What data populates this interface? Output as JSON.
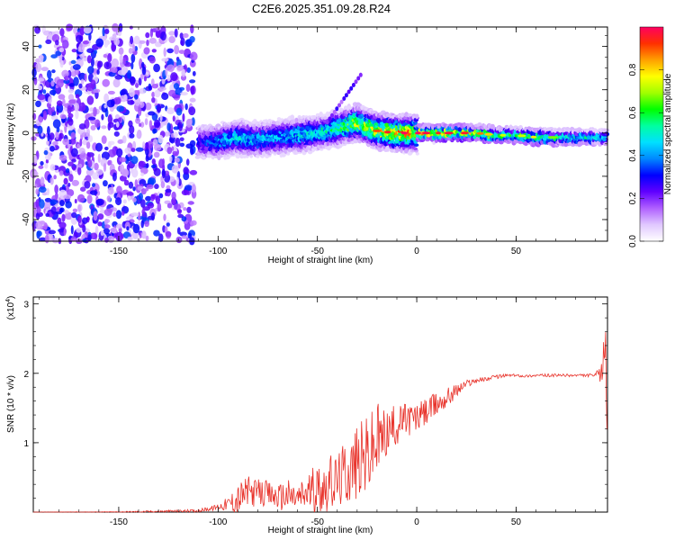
{
  "page_title": "C2E6.2025.351.09.28.R24",
  "chart_data": [
    {
      "type": "heatmap",
      "title": "C2E6.2025.351.09.28.R24",
      "xlabel": "Height of straight line (km)",
      "ylabel": "Frequency (Hz)",
      "xlim": [
        -193,
        96
      ],
      "ylim": [
        -50,
        49
      ],
      "x_ticks": [
        -150,
        -100,
        -50,
        0,
        50
      ],
      "x_tick_labels": [
        "-150",
        "-100",
        "-50",
        "0",
        "50"
      ],
      "y_ticks": [
        -40,
        -20,
        0,
        20,
        40
      ],
      "y_tick_labels": [
        "-40",
        "-20",
        "0",
        "20",
        "40"
      ],
      "colorbar": {
        "label": "Normalized spectral amplitude",
        "range": [
          0,
          1
        ],
        "ticks": [
          0.0,
          0.2,
          0.4,
          0.6,
          0.8
        ],
        "tick_labels": [
          "0.0",
          "0.2",
          "0.4",
          "0.6",
          "0.8"
        ],
        "colors": [
          "#ffffff",
          "#e0c8ff",
          "#b060ff",
          "#6000ff",
          "#0000ff",
          "#0088ff",
          "#00e0ff",
          "#00ffa0",
          "#00ff00",
          "#a0ff00",
          "#ffff00",
          "#ffa000",
          "#ff3000",
          "#ff0060"
        ]
      },
      "ridge": [
        {
          "x": -110,
          "y": -4,
          "v": 0.35
        },
        {
          "x": -100,
          "y": -4,
          "v": 0.45
        },
        {
          "x": -90,
          "y": -2,
          "v": 0.55
        },
        {
          "x": -80,
          "y": -3,
          "v": 0.5
        },
        {
          "x": -70,
          "y": -2,
          "v": 0.5
        },
        {
          "x": -60,
          "y": -1,
          "v": 0.55
        },
        {
          "x": -50,
          "y": 0,
          "v": 0.55
        },
        {
          "x": -40,
          "y": 2,
          "v": 0.65
        },
        {
          "x": -30,
          "y": 5,
          "v": 0.8
        },
        {
          "x": -20,
          "y": 1,
          "v": 0.85
        },
        {
          "x": -10,
          "y": 0,
          "v": 0.95
        },
        {
          "x": 0,
          "y": 0,
          "v": 0.95
        },
        {
          "x": 10,
          "y": 0,
          "v": 0.9
        },
        {
          "x": 20,
          "y": 0,
          "v": 0.95
        },
        {
          "x": 30,
          "y": 0,
          "v": 0.85
        },
        {
          "x": 40,
          "y": -1,
          "v": 0.7
        },
        {
          "x": 50,
          "y": -1,
          "v": 0.65
        },
        {
          "x": 60,
          "y": -2,
          "v": 0.75
        },
        {
          "x": 70,
          "y": -2,
          "v": 0.6
        },
        {
          "x": 80,
          "y": -2,
          "v": 0.6
        },
        {
          "x": 95,
          "y": -2,
          "v": 0.55
        }
      ],
      "noise_region": {
        "x": [
          -193,
          -112
        ],
        "y": [
          -50,
          49
        ],
        "v_max": 0.3
      }
    },
    {
      "type": "line",
      "xlabel": "Height of straight line (km)",
      "ylabel": "SNR (10 * v/v)",
      "y_multiplier_label": "(x10",
      "y_multiplier_exp": "4",
      "y_multiplier_close": ")",
      "xlim": [
        -193,
        96
      ],
      "ylim": [
        0,
        3.1
      ],
      "x_ticks": [
        -150,
        -100,
        -50,
        0,
        50
      ],
      "x_tick_labels": [
        "-150",
        "-100",
        "-50",
        "0",
        "50"
      ],
      "y_ticks": [
        1,
        2,
        3
      ],
      "y_tick_labels": [
        "1",
        "2",
        "3"
      ],
      "line_color": "#e8322a",
      "series": [
        {
          "name": "SNR",
          "x": [
            -193,
            -150,
            -110,
            -102,
            -95,
            -90,
            -85,
            -80,
            -75,
            -70,
            -65,
            -60,
            -55,
            -50,
            -45,
            -40,
            -35,
            -30,
            -25,
            -20,
            -15,
            -10,
            -5,
            0,
            5,
            10,
            15,
            20,
            25,
            30,
            35,
            40,
            45,
            50,
            55,
            60,
            65,
            70,
            75,
            80,
            85,
            90,
            93,
            95,
            96
          ],
          "y": [
            0.0,
            0.0,
            0.02,
            0.06,
            0.12,
            0.18,
            0.3,
            0.28,
            0.25,
            0.22,
            0.24,
            0.2,
            0.28,
            0.35,
            0.4,
            0.45,
            0.6,
            0.7,
            0.8,
            1.0,
            1.15,
            1.25,
            1.35,
            1.35,
            1.45,
            1.55,
            1.65,
            1.75,
            1.85,
            1.9,
            1.92,
            1.95,
            1.97,
            1.97,
            1.96,
            1.97,
            1.97,
            1.97,
            1.97,
            1.97,
            1.97,
            1.97,
            2.0,
            2.5,
            1.6
          ],
          "amp": [
            0.0,
            0.01,
            0.02,
            0.04,
            0.1,
            0.25,
            0.22,
            0.2,
            0.2,
            0.18,
            0.25,
            0.2,
            0.3,
            0.35,
            0.4,
            0.4,
            0.5,
            0.55,
            0.6,
            0.6,
            0.35,
            0.3,
            0.25,
            0.22,
            0.2,
            0.18,
            0.15,
            0.1,
            0.06,
            0.04,
            0.03,
            0.03,
            0.02,
            0.02,
            0.02,
            0.02,
            0.02,
            0.02,
            0.02,
            0.02,
            0.02,
            0.03,
            0.15,
            0.7,
            0.9
          ]
        }
      ]
    }
  ]
}
